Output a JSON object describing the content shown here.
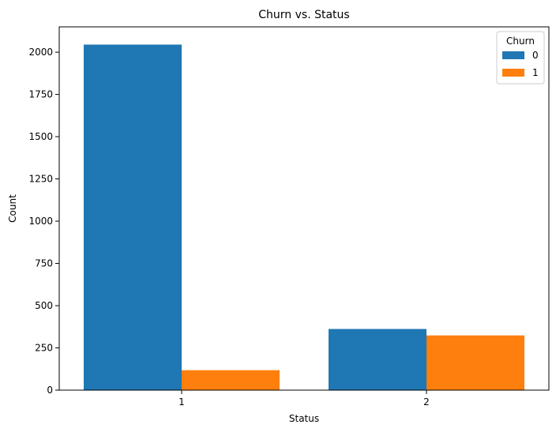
{
  "chart_data": {
    "type": "bar",
    "title": "Churn vs. Status",
    "xlabel": "Status",
    "ylabel": "Count",
    "categories": [
      "1",
      "2"
    ],
    "series": [
      {
        "name": "0",
        "values": [
          2045,
          362
        ],
        "color": "#1f77b4"
      },
      {
        "name": "1",
        "values": [
          118,
          324
        ],
        "color": "#ff7f0e"
      }
    ],
    "ylim": [
      0,
      2150
    ],
    "yticks": [
      0,
      250,
      500,
      750,
      1000,
      1250,
      1500,
      1750,
      2000
    ],
    "grid": false,
    "legend": {
      "title": "Churn",
      "placement": "top-right"
    }
  }
}
